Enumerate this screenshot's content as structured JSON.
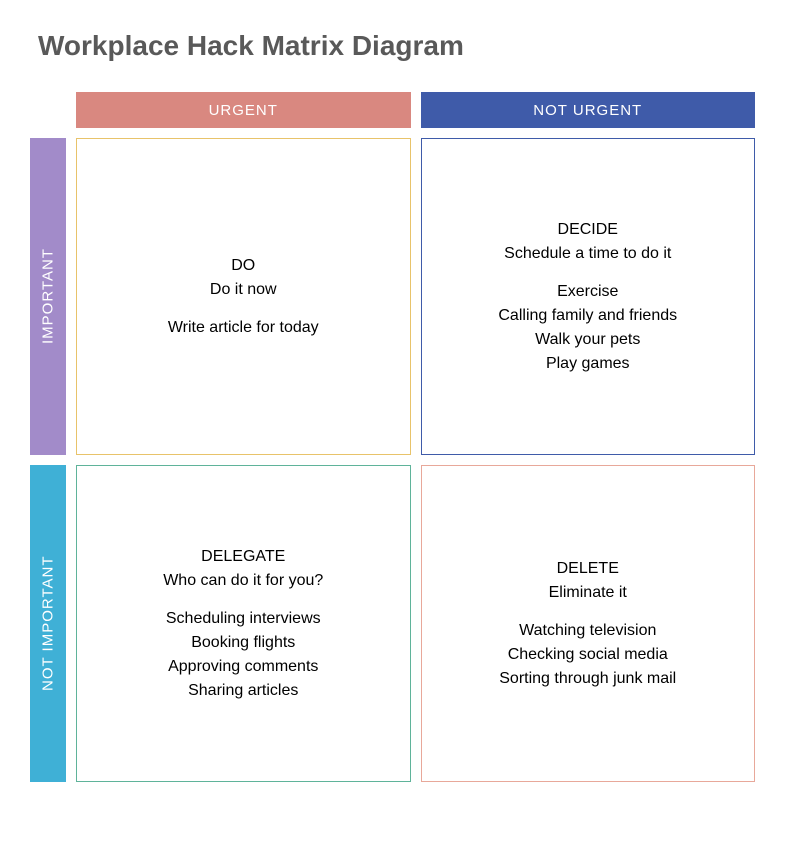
{
  "title": "Workplace Hack Matrix Diagram",
  "colors": {
    "title_text": "#595959",
    "col_urgent_bg": "#d98880",
    "col_not_urgent_bg": "#3f5ba9",
    "row_important_bg": "#a28bc9",
    "row_not_important_bg": "#3fb0d6",
    "q_do_border": "#e8c36a",
    "q_decide_border": "#3f5ba9",
    "q_delegate_border": "#5fb39a",
    "q_delete_border": "#e8a89a",
    "body_text": "#000000"
  },
  "columns": {
    "urgent": "URGENT",
    "not_urgent": "NOT URGENT"
  },
  "rows": {
    "important": "IMPORTANT",
    "not_important": "NOT IMPORTANT"
  },
  "quadrants": {
    "do": {
      "label": "DO",
      "subtitle": "Do it now",
      "items": [
        "Write article for today"
      ]
    },
    "decide": {
      "label": "DECIDE",
      "subtitle": "Schedule a time to do it",
      "items": [
        "Exercise",
        "Calling family and friends",
        "Walk your pets",
        "Play games"
      ]
    },
    "delegate": {
      "label": "DELEGATE",
      "subtitle": "Who can do it for you?",
      "items": [
        "Scheduling interviews",
        "Booking flights",
        "Approving comments",
        "Sharing articles"
      ]
    },
    "delete": {
      "label": "DELETE",
      "subtitle": "Eliminate it",
      "items": [
        "Watching television",
        "Checking social media",
        "Sorting through junk mail"
      ]
    }
  }
}
